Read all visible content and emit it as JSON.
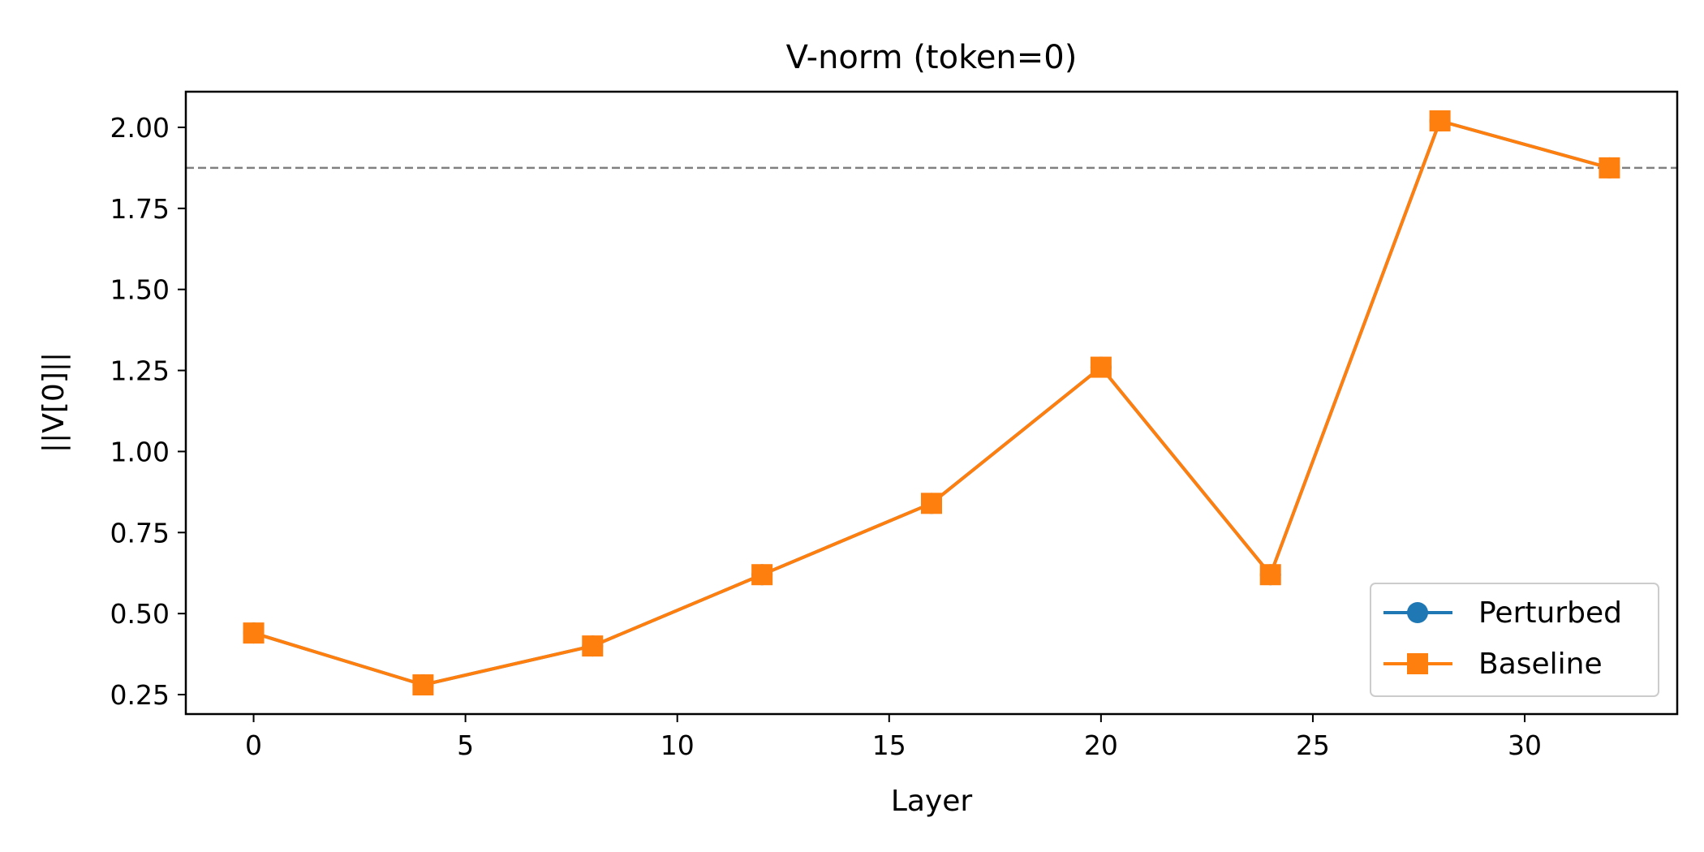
{
  "chart_data": {
    "type": "line",
    "title": "V-norm (token=0)",
    "xlabel": "Layer",
    "ylabel": "||V[0]||",
    "xlim": [
      -1.6,
      33.6
    ],
    "ylim": [
      0.19,
      2.11
    ],
    "x_ticks": [
      0,
      5,
      10,
      15,
      20,
      25,
      30
    ],
    "y_ticks": [
      0.25,
      0.5,
      0.75,
      1.0,
      1.25,
      1.5,
      1.75,
      2.0
    ],
    "y_tick_labels": [
      "0.25",
      "0.50",
      "0.75",
      "1.00",
      "1.25",
      "1.50",
      "1.75",
      "2.00"
    ],
    "x": [
      0,
      4,
      8,
      12,
      16,
      20,
      24,
      28,
      32
    ],
    "series": [
      {
        "name": "Perturbed",
        "color": "#1f77b4",
        "marker": "circle",
        "values": [
          0.44,
          0.28,
          0.4,
          0.62,
          0.84,
          1.26,
          0.62,
          2.02,
          1.875
        ]
      },
      {
        "name": "Baseline",
        "color": "#ff7f0e",
        "marker": "square",
        "values": [
          0.44,
          0.28,
          0.4,
          0.62,
          0.84,
          1.26,
          0.62,
          2.02,
          1.875
        ]
      }
    ],
    "reference_line": {
      "y": 1.875,
      "color": "#808080",
      "style": "dashed"
    },
    "grid": false,
    "legend_position": "lower-right"
  }
}
